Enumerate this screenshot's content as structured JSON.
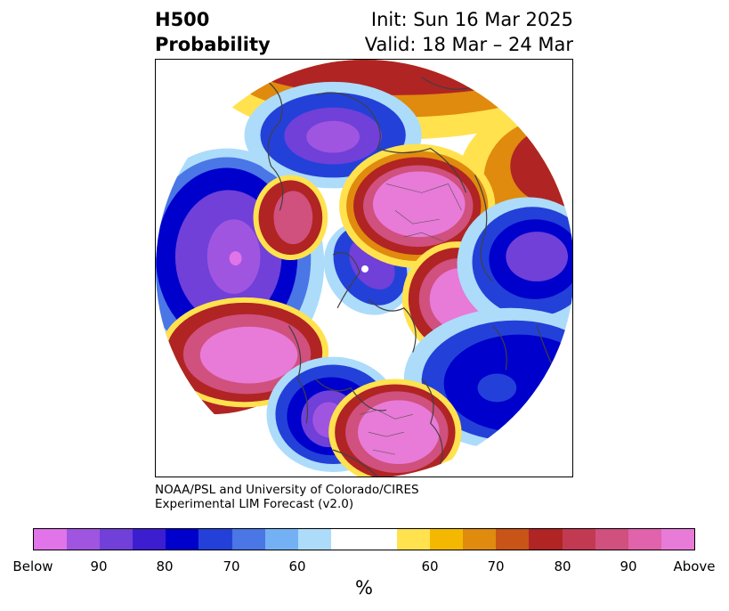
{
  "header": {
    "title_line1": "H500",
    "title_line2": "Probability",
    "init": "Init: Sun 16 Mar 2025",
    "valid": "Valid: 18 Mar – 24 Mar"
  },
  "credit": {
    "line1": "NOAA/PSL and University of Colorado/CIRES",
    "line2": "Experimental LIM Forecast (v2.0)"
  },
  "colorbar": {
    "colors": [
      "#e074e8",
      "#a055e0",
      "#7040d8",
      "#3c1ed0",
      "#0000cc",
      "#2341d8",
      "#4a76e6",
      "#74b1f4",
      "#acdcfa",
      "#ffffff",
      "#ffffff",
      "#ffe24e",
      "#f5b800",
      "#e08a0e",
      "#c85418",
      "#b02424",
      "#c23a52",
      "#d0507e",
      "#e063ac",
      "#e87ad8"
    ],
    "labels": [
      "Below",
      "90",
      "80",
      "70",
      "60",
      "60",
      "70",
      "80",
      "90",
      "Above"
    ],
    "units": "%"
  },
  "map": {
    "projection": "north-polar-stereographic",
    "palette": {
      "below_strong": "#a055e0",
      "below_mid": "#0000cc",
      "below_weak": "#acdcfa",
      "above_weak": "#ffe24e",
      "above_mid": "#b02424",
      "above_strong": "#e063ac"
    },
    "coastline_color": "#404040"
  }
}
